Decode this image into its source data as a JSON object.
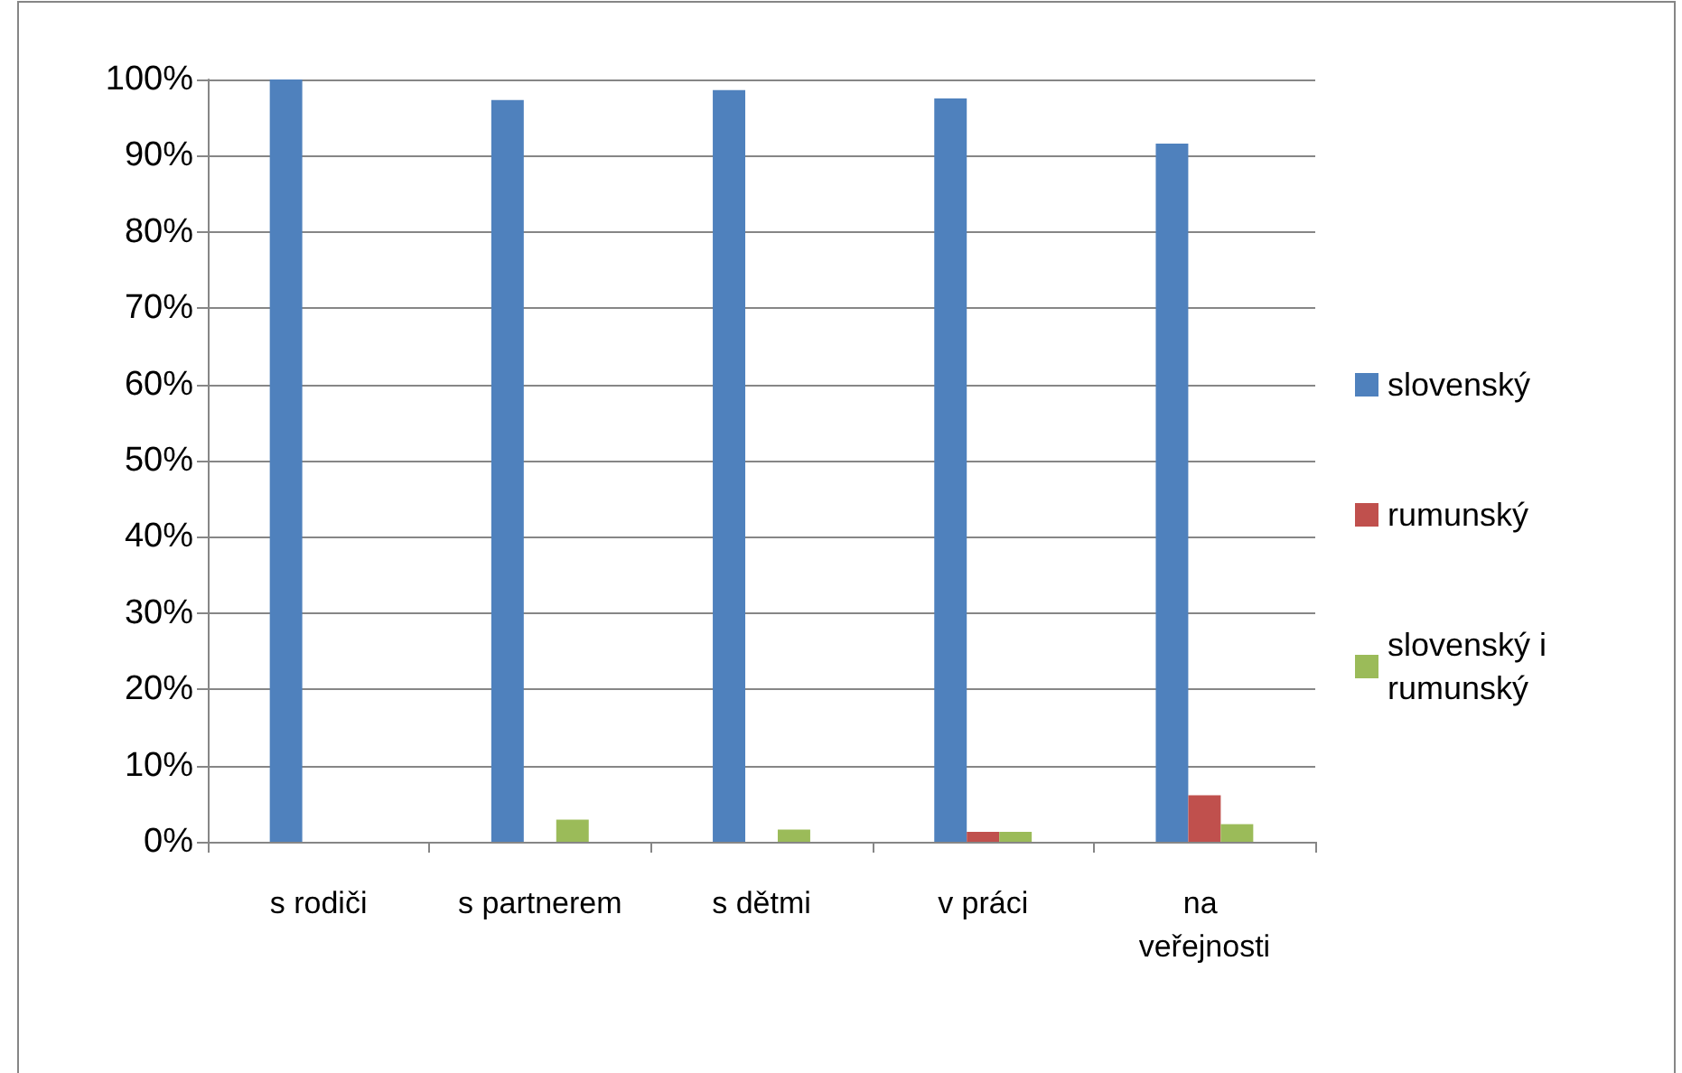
{
  "chart_data": {
    "type": "bar",
    "categories": [
      "s rodiči",
      "s partnerem",
      "s dětmi",
      "v práci",
      "na veřejnosti"
    ],
    "series": [
      {
        "name": "slovenský",
        "color": "#4f81bd",
        "values": [
          100,
          97.3,
          98.6,
          97.5,
          91.6
        ]
      },
      {
        "name": "rumunský",
        "color": "#c0504d",
        "values": [
          0,
          0,
          0,
          1.3,
          6.1
        ]
      },
      {
        "name": "slovenský i rumunský",
        "color": "#9bbb59",
        "values": [
          0,
          2.9,
          1.6,
          1.3,
          2.3
        ]
      }
    ],
    "ylim": [
      0,
      100
    ],
    "yticks": [
      {
        "value": 0,
        "label": "0%"
      },
      {
        "value": 10,
        "label": "10%"
      },
      {
        "value": 20,
        "label": "20%"
      },
      {
        "value": 30,
        "label": "30%"
      },
      {
        "value": 40,
        "label": "40%"
      },
      {
        "value": 50,
        "label": "50%"
      },
      {
        "value": 60,
        "label": "60%"
      },
      {
        "value": 70,
        "label": "70%"
      },
      {
        "value": 80,
        "label": "80%"
      },
      {
        "value": 90,
        "label": "90%"
      },
      {
        "value": 100,
        "label": "100%"
      }
    ],
    "grid": "y",
    "legend": "right"
  }
}
